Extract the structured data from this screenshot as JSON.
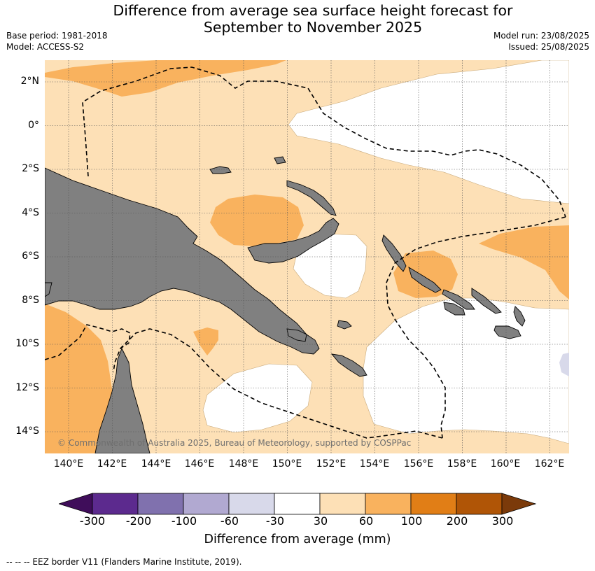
{
  "title_line1": "Difference from average sea surface height forecast for",
  "title_line2": "September to November 2025",
  "base_period": "Base period: 1981-2018",
  "model": "Model: ACCESS-S2",
  "model_run": "Model run: 23/08/2025",
  "issued": "Issued: 25/08/2025",
  "copyright": "© Commonwealth of Australia 2025, Bureau of Meteorology, supported by COSPPac",
  "lat_labels": [
    "2°N",
    "0°",
    "2°S",
    "4°S",
    "6°S",
    "8°S",
    "10°S",
    "12°S",
    "14°S"
  ],
  "lon_labels": [
    "140°E",
    "142°E",
    "144°E",
    "146°E",
    "148°E",
    "150°E",
    "152°E",
    "154°E",
    "156°E",
    "158°E",
    "160°E",
    "162°E"
  ],
  "colorbar": {
    "title": "Difference from average (mm)",
    "tick_labels": [
      "-300",
      "-200",
      "-100",
      "-60",
      "-30",
      "30",
      "60",
      "100",
      "200",
      "300"
    ],
    "bin_colors": [
      "#3f0d5a",
      "#5c2a8e",
      "#8071ae",
      "#b1a9d1",
      "#d8d9ea",
      "#ffffff",
      "#fde0b6",
      "#f9b25e",
      "#e17e16",
      "#b05506",
      "#7b3a0a"
    ]
  },
  "footnote": "--  --  -- EEZ border V11 (Flanders Marine Institute, 2019).",
  "colors": {
    "land": "#808080",
    "grid": "#555555"
  }
}
